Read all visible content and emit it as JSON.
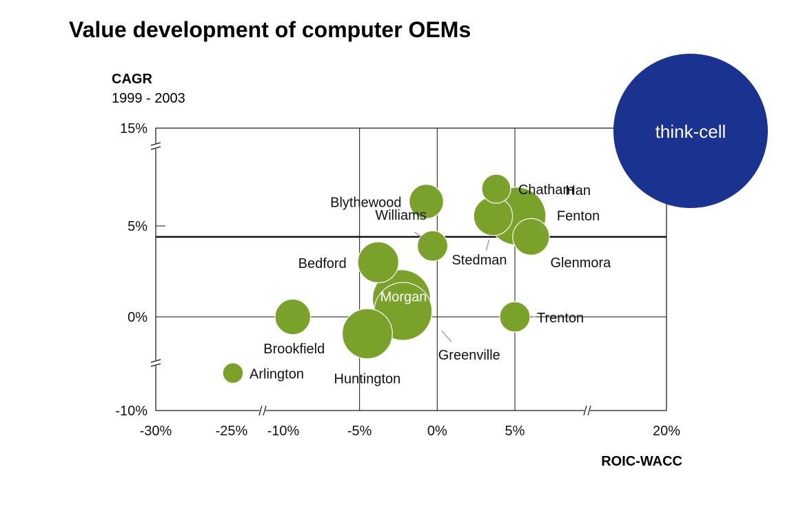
{
  "chart_data": {
    "type": "scatter",
    "subtype": "bubble",
    "title": "Value development of computer OEMs",
    "ylabel": "CAGR",
    "ylabel_sub": "1999 - 2003",
    "xlabel": "ROIC-WACC",
    "x_ticks": [
      "-30%",
      "-25%",
      "-10%",
      "-5%",
      "0%",
      "5%",
      "20%"
    ],
    "y_ticks": [
      "15%",
      "5%",
      "0%",
      "-10%"
    ],
    "reference_line_y": 4.4,
    "bubble_color": "#7aa22a",
    "points": [
      {
        "name": "Chatham",
        "x": 3.8,
        "y": 8.8,
        "size": 1.0
      },
      {
        "name": "Han",
        "x": 10.0,
        "y": 8.8,
        "size": 0
      },
      {
        "name": "Blythewood",
        "x": -0.7,
        "y": 7.5,
        "size": 1.4
      },
      {
        "name": "Fenton",
        "x": 5.2,
        "y": 6.0,
        "size": 4.0
      },
      {
        "name": "Stedman",
        "x": 3.6,
        "y": 6.0,
        "size": 1.8
      },
      {
        "name": "Glenmora",
        "x": 6.6,
        "y": 4.4,
        "size": 1.6
      },
      {
        "name": "Williams",
        "x": -0.3,
        "y": 3.9,
        "size": 1.1
      },
      {
        "name": "Bedford",
        "x": -3.8,
        "y": 3.0,
        "size": 2.0
      },
      {
        "name": "Morgan",
        "x": -2.3,
        "y": 1.0,
        "size": 4.0
      },
      {
        "name": "Greenville",
        "x": -2.2,
        "y": 0.3,
        "size": 4.0
      },
      {
        "name": "Brookfield",
        "x": -9.3,
        "y": 0.0,
        "size": 1.5
      },
      {
        "name": "Trenton",
        "x": 5.0,
        "y": 0.0,
        "size": 1.1
      },
      {
        "name": "Huntington",
        "x": -4.5,
        "y": -1.8,
        "size": 3.0
      },
      {
        "name": "Arlington",
        "x": -25.0,
        "y": -6.0,
        "size": 0.5
      }
    ]
  },
  "badge": {
    "label": "think-cell",
    "color": "#1a3290"
  }
}
